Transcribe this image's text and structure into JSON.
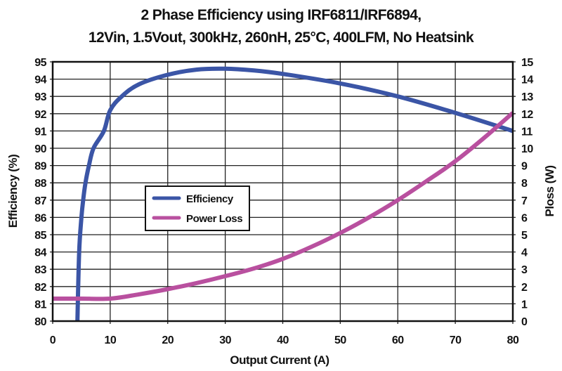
{
  "chart_data": {
    "type": "line",
    "title": "2 Phase Efficiency using IRF6811/IRF6894,",
    "subtitle": "12Vin, 1.5Vout, 300kHz, 260nH, 25°C, 400LFM, No Heatsink",
    "xlabel": "Output Current (A)",
    "ylabel": "Efficiency (%)",
    "y2label": "Ploss (W)",
    "xlim": [
      0,
      80
    ],
    "ylim": [
      80,
      95
    ],
    "y2lim": [
      0,
      15
    ],
    "xticks": [
      "0",
      "10",
      "20",
      "30",
      "40",
      "50",
      "60",
      "70",
      "80"
    ],
    "yticks": [
      "80",
      "81",
      "82",
      "83",
      "84",
      "85",
      "86",
      "87",
      "88",
      "89",
      "90",
      "91",
      "92",
      "93",
      "94",
      "95"
    ],
    "y2ticks": [
      "0",
      "1",
      "2",
      "3",
      "4",
      "5",
      "6",
      "7",
      "8",
      "9",
      "10",
      "11",
      "12",
      "13",
      "14",
      "15"
    ],
    "grid": true,
    "legend_position": "center-left",
    "series": [
      {
        "name": "Efficiency",
        "axis": "left",
        "color": "#3b55a6",
        "x": [
          4.3,
          4.6,
          5.0,
          5.3,
          5.7,
          6.3,
          7.1,
          8.9,
          10,
          12,
          15,
          20,
          25,
          30,
          35,
          40,
          50,
          60,
          70,
          80
        ],
        "values": [
          80,
          84,
          86,
          87,
          88,
          89,
          90,
          91,
          92.2,
          93.0,
          93.7,
          94.25,
          94.55,
          94.6,
          94.5,
          94.3,
          93.75,
          93.0,
          92.05,
          91.0
        ]
      },
      {
        "name": "Power Loss",
        "axis": "right",
        "color": "#b9509f",
        "x": [
          0,
          5,
          10,
          15,
          20,
          25,
          30,
          35,
          40,
          45,
          50,
          55,
          60,
          65,
          70,
          75,
          80
        ],
        "values": [
          1.3,
          1.3,
          1.3,
          1.55,
          1.85,
          2.2,
          2.6,
          3.05,
          3.6,
          4.3,
          5.1,
          6.0,
          7.0,
          8.1,
          9.25,
          10.6,
          12.05
        ]
      }
    ]
  }
}
